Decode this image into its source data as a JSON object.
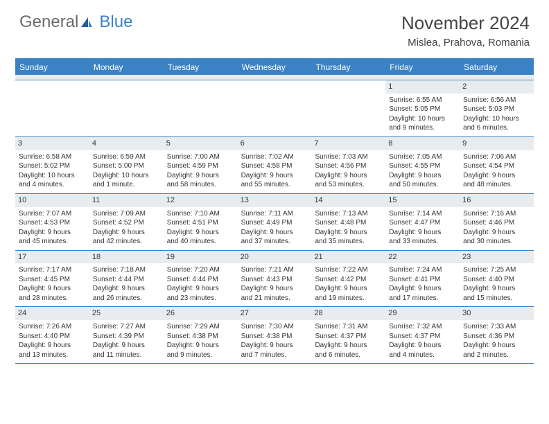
{
  "brand": {
    "word1": "General",
    "word2": "Blue"
  },
  "title": "November 2024",
  "location": "Mislea, Prahova, Romania",
  "colors": {
    "accent": "#3b82c4",
    "header_text": "#6b6b6b",
    "daynum_bg": "#e9ecef",
    "border": "#3b82c4",
    "text": "#333333",
    "background": "#ffffff"
  },
  "dow": [
    "Sunday",
    "Monday",
    "Tuesday",
    "Wednesday",
    "Thursday",
    "Friday",
    "Saturday"
  ],
  "weeks": [
    [
      null,
      null,
      null,
      null,
      null,
      {
        "n": "1",
        "sr": "Sunrise: 6:55 AM",
        "ss": "Sunset: 5:05 PM",
        "d1": "Daylight: 10 hours",
        "d2": "and 9 minutes."
      },
      {
        "n": "2",
        "sr": "Sunrise: 6:56 AM",
        "ss": "Sunset: 5:03 PM",
        "d1": "Daylight: 10 hours",
        "d2": "and 6 minutes."
      }
    ],
    [
      {
        "n": "3",
        "sr": "Sunrise: 6:58 AM",
        "ss": "Sunset: 5:02 PM",
        "d1": "Daylight: 10 hours",
        "d2": "and 4 minutes."
      },
      {
        "n": "4",
        "sr": "Sunrise: 6:59 AM",
        "ss": "Sunset: 5:00 PM",
        "d1": "Daylight: 10 hours",
        "d2": "and 1 minute."
      },
      {
        "n": "5",
        "sr": "Sunrise: 7:00 AM",
        "ss": "Sunset: 4:59 PM",
        "d1": "Daylight: 9 hours",
        "d2": "and 58 minutes."
      },
      {
        "n": "6",
        "sr": "Sunrise: 7:02 AM",
        "ss": "Sunset: 4:58 PM",
        "d1": "Daylight: 9 hours",
        "d2": "and 55 minutes."
      },
      {
        "n": "7",
        "sr": "Sunrise: 7:03 AM",
        "ss": "Sunset: 4:56 PM",
        "d1": "Daylight: 9 hours",
        "d2": "and 53 minutes."
      },
      {
        "n": "8",
        "sr": "Sunrise: 7:05 AM",
        "ss": "Sunset: 4:55 PM",
        "d1": "Daylight: 9 hours",
        "d2": "and 50 minutes."
      },
      {
        "n": "9",
        "sr": "Sunrise: 7:06 AM",
        "ss": "Sunset: 4:54 PM",
        "d1": "Daylight: 9 hours",
        "d2": "and 48 minutes."
      }
    ],
    [
      {
        "n": "10",
        "sr": "Sunrise: 7:07 AM",
        "ss": "Sunset: 4:53 PM",
        "d1": "Daylight: 9 hours",
        "d2": "and 45 minutes."
      },
      {
        "n": "11",
        "sr": "Sunrise: 7:09 AM",
        "ss": "Sunset: 4:52 PM",
        "d1": "Daylight: 9 hours",
        "d2": "and 42 minutes."
      },
      {
        "n": "12",
        "sr": "Sunrise: 7:10 AM",
        "ss": "Sunset: 4:51 PM",
        "d1": "Daylight: 9 hours",
        "d2": "and 40 minutes."
      },
      {
        "n": "13",
        "sr": "Sunrise: 7:11 AM",
        "ss": "Sunset: 4:49 PM",
        "d1": "Daylight: 9 hours",
        "d2": "and 37 minutes."
      },
      {
        "n": "14",
        "sr": "Sunrise: 7:13 AM",
        "ss": "Sunset: 4:48 PM",
        "d1": "Daylight: 9 hours",
        "d2": "and 35 minutes."
      },
      {
        "n": "15",
        "sr": "Sunrise: 7:14 AM",
        "ss": "Sunset: 4:47 PM",
        "d1": "Daylight: 9 hours",
        "d2": "and 33 minutes."
      },
      {
        "n": "16",
        "sr": "Sunrise: 7:16 AM",
        "ss": "Sunset: 4:46 PM",
        "d1": "Daylight: 9 hours",
        "d2": "and 30 minutes."
      }
    ],
    [
      {
        "n": "17",
        "sr": "Sunrise: 7:17 AM",
        "ss": "Sunset: 4:45 PM",
        "d1": "Daylight: 9 hours",
        "d2": "and 28 minutes."
      },
      {
        "n": "18",
        "sr": "Sunrise: 7:18 AM",
        "ss": "Sunset: 4:44 PM",
        "d1": "Daylight: 9 hours",
        "d2": "and 26 minutes."
      },
      {
        "n": "19",
        "sr": "Sunrise: 7:20 AM",
        "ss": "Sunset: 4:44 PM",
        "d1": "Daylight: 9 hours",
        "d2": "and 23 minutes."
      },
      {
        "n": "20",
        "sr": "Sunrise: 7:21 AM",
        "ss": "Sunset: 4:43 PM",
        "d1": "Daylight: 9 hours",
        "d2": "and 21 minutes."
      },
      {
        "n": "21",
        "sr": "Sunrise: 7:22 AM",
        "ss": "Sunset: 4:42 PM",
        "d1": "Daylight: 9 hours",
        "d2": "and 19 minutes."
      },
      {
        "n": "22",
        "sr": "Sunrise: 7:24 AM",
        "ss": "Sunset: 4:41 PM",
        "d1": "Daylight: 9 hours",
        "d2": "and 17 minutes."
      },
      {
        "n": "23",
        "sr": "Sunrise: 7:25 AM",
        "ss": "Sunset: 4:40 PM",
        "d1": "Daylight: 9 hours",
        "d2": "and 15 minutes."
      }
    ],
    [
      {
        "n": "24",
        "sr": "Sunrise: 7:26 AM",
        "ss": "Sunset: 4:40 PM",
        "d1": "Daylight: 9 hours",
        "d2": "and 13 minutes."
      },
      {
        "n": "25",
        "sr": "Sunrise: 7:27 AM",
        "ss": "Sunset: 4:39 PM",
        "d1": "Daylight: 9 hours",
        "d2": "and 11 minutes."
      },
      {
        "n": "26",
        "sr": "Sunrise: 7:29 AM",
        "ss": "Sunset: 4:38 PM",
        "d1": "Daylight: 9 hours",
        "d2": "and 9 minutes."
      },
      {
        "n": "27",
        "sr": "Sunrise: 7:30 AM",
        "ss": "Sunset: 4:38 PM",
        "d1": "Daylight: 9 hours",
        "d2": "and 7 minutes."
      },
      {
        "n": "28",
        "sr": "Sunrise: 7:31 AM",
        "ss": "Sunset: 4:37 PM",
        "d1": "Daylight: 9 hours",
        "d2": "and 6 minutes."
      },
      {
        "n": "29",
        "sr": "Sunrise: 7:32 AM",
        "ss": "Sunset: 4:37 PM",
        "d1": "Daylight: 9 hours",
        "d2": "and 4 minutes."
      },
      {
        "n": "30",
        "sr": "Sunrise: 7:33 AM",
        "ss": "Sunset: 4:36 PM",
        "d1": "Daylight: 9 hours",
        "d2": "and 2 minutes."
      }
    ]
  ]
}
